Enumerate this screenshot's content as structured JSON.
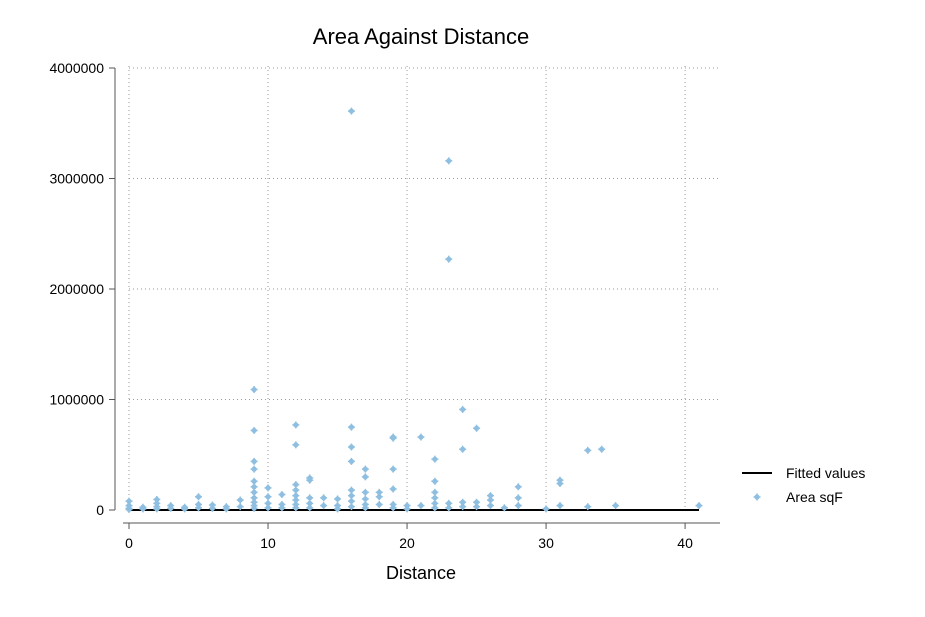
{
  "chart_data": {
    "type": "scatter",
    "title": "Area Against Distance",
    "xlabel": "Distance",
    "ylabel": "",
    "xlim": [
      0,
      41
    ],
    "ylim": [
      0,
      4000000
    ],
    "xticks": [
      0,
      10,
      20,
      30,
      40
    ],
    "yticks": [
      0,
      1000000,
      2000000,
      3000000,
      4000000
    ],
    "xtick_labels": [
      "0",
      "10",
      "20",
      "30",
      "40"
    ],
    "ytick_labels": [
      "0",
      "1000000",
      "2000000",
      "3000000",
      "4000000"
    ],
    "grid": "dotted",
    "legend": {
      "position": "right",
      "entries": [
        "Fitted values",
        "Area sqF"
      ]
    },
    "colors": {
      "scatter": "#8fbfe0",
      "fit": "#000000",
      "grid": "#9a9a9a",
      "axis": "#555555"
    },
    "fitted": {
      "name": "Fitted values",
      "x": [
        0,
        41
      ],
      "y": [
        0,
        0
      ]
    },
    "series": [
      {
        "name": "Area sqF",
        "points": [
          [
            0,
            80000
          ],
          [
            0,
            40000
          ],
          [
            0,
            15000
          ],
          [
            0,
            5000
          ],
          [
            1,
            25000
          ],
          [
            1,
            10000
          ],
          [
            2,
            95000
          ],
          [
            2,
            60000
          ],
          [
            2,
            30000
          ],
          [
            2,
            10000
          ],
          [
            3,
            40000
          ],
          [
            3,
            15000
          ],
          [
            4,
            25000
          ],
          [
            4,
            10000
          ],
          [
            5,
            120000
          ],
          [
            5,
            50000
          ],
          [
            5,
            20000
          ],
          [
            6,
            45000
          ],
          [
            6,
            15000
          ],
          [
            7,
            30000
          ],
          [
            7,
            10000
          ],
          [
            8,
            90000
          ],
          [
            8,
            30000
          ],
          [
            9,
            1090000
          ],
          [
            9,
            720000
          ],
          [
            9,
            440000
          ],
          [
            9,
            370000
          ],
          [
            9,
            260000
          ],
          [
            9,
            210000
          ],
          [
            9,
            160000
          ],
          [
            9,
            110000
          ],
          [
            9,
            70000
          ],
          [
            9,
            40000
          ],
          [
            9,
            15000
          ],
          [
            10,
            200000
          ],
          [
            10,
            120000
          ],
          [
            10,
            60000
          ],
          [
            10,
            20000
          ],
          [
            11,
            140000
          ],
          [
            11,
            50000
          ],
          [
            11,
            20000
          ],
          [
            12,
            770000
          ],
          [
            12,
            590000
          ],
          [
            12,
            230000
          ],
          [
            12,
            180000
          ],
          [
            12,
            130000
          ],
          [
            12,
            90000
          ],
          [
            12,
            50000
          ],
          [
            12,
            20000
          ],
          [
            13,
            290000
          ],
          [
            13,
            270000
          ],
          [
            13,
            110000
          ],
          [
            13,
            60000
          ],
          [
            13,
            20000
          ],
          [
            14,
            110000
          ],
          [
            14,
            40000
          ],
          [
            15,
            100000
          ],
          [
            15,
            40000
          ],
          [
            15,
            10000
          ],
          [
            16,
            3610000
          ],
          [
            16,
            750000
          ],
          [
            16,
            570000
          ],
          [
            16,
            440000
          ],
          [
            16,
            180000
          ],
          [
            16,
            130000
          ],
          [
            16,
            80000
          ],
          [
            16,
            30000
          ],
          [
            17,
            370000
          ],
          [
            17,
            300000
          ],
          [
            17,
            160000
          ],
          [
            17,
            100000
          ],
          [
            17,
            50000
          ],
          [
            17,
            20000
          ],
          [
            18,
            160000
          ],
          [
            18,
            120000
          ],
          [
            18,
            50000
          ],
          [
            19,
            660000
          ],
          [
            19,
            650000
          ],
          [
            19,
            370000
          ],
          [
            19,
            190000
          ],
          [
            19,
            50000
          ],
          [
            19,
            20000
          ],
          [
            20,
            40000
          ],
          [
            20,
            10000
          ],
          [
            21,
            660000
          ],
          [
            21,
            40000
          ],
          [
            22,
            460000
          ],
          [
            22,
            260000
          ],
          [
            22,
            160000
          ],
          [
            22,
            110000
          ],
          [
            22,
            60000
          ],
          [
            22,
            20000
          ],
          [
            23,
            3160000
          ],
          [
            23,
            2270000
          ],
          [
            23,
            60000
          ],
          [
            23,
            20000
          ],
          [
            24,
            910000
          ],
          [
            24,
            550000
          ],
          [
            24,
            70000
          ],
          [
            24,
            30000
          ],
          [
            25,
            740000
          ],
          [
            25,
            70000
          ],
          [
            25,
            30000
          ],
          [
            26,
            130000
          ],
          [
            26,
            90000
          ],
          [
            26,
            40000
          ],
          [
            27,
            20000
          ],
          [
            28,
            210000
          ],
          [
            28,
            110000
          ],
          [
            28,
            40000
          ],
          [
            30,
            10000
          ],
          [
            31,
            270000
          ],
          [
            31,
            240000
          ],
          [
            31,
            40000
          ],
          [
            33,
            540000
          ],
          [
            33,
            30000
          ],
          [
            34,
            550000
          ],
          [
            35,
            40000
          ],
          [
            41,
            40000
          ]
        ]
      }
    ]
  }
}
